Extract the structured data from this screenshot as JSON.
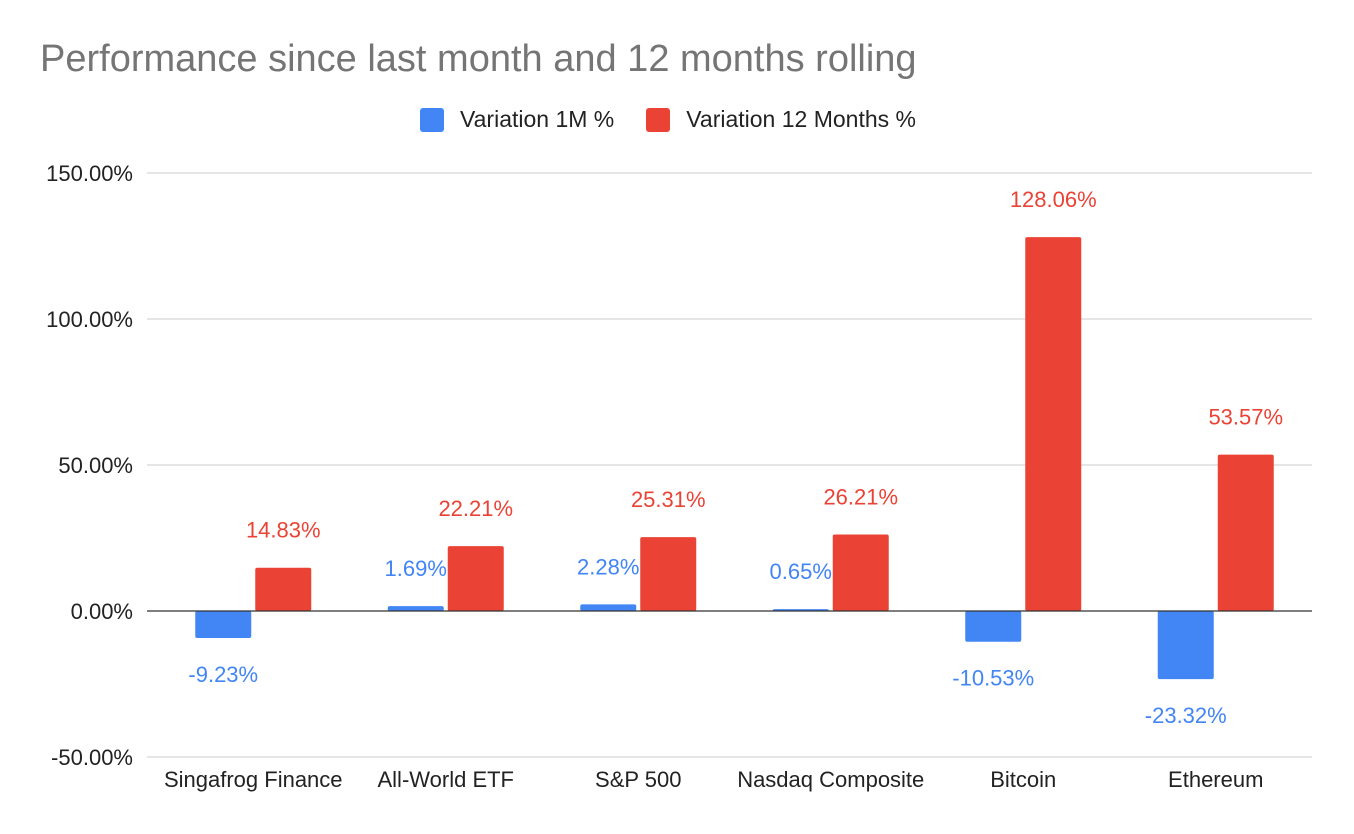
{
  "chart_data": {
    "type": "bar",
    "title": "Performance since last month and 12 months rolling",
    "categories": [
      "Singafrog Finance",
      "All-World ETF",
      "S&P 500",
      "Nasdaq Composite",
      "Bitcoin",
      "Ethereum"
    ],
    "series": [
      {
        "name": "Variation 1M %",
        "color": "#4285F4",
        "values": [
          -9.23,
          1.69,
          2.28,
          0.65,
          -10.53,
          -23.32
        ],
        "labels": [
          "-9.23%",
          "1.69%",
          "2.28%",
          "0.65%",
          "-10.53%",
          "-23.32%"
        ]
      },
      {
        "name": "Variation 12 Months %",
        "color": "#EA4335",
        "values": [
          14.83,
          22.21,
          25.31,
          26.21,
          128.06,
          53.57
        ],
        "labels": [
          "14.83%",
          "22.21%",
          "25.31%",
          "26.21%",
          "128.06%",
          "53.57%"
        ]
      }
    ],
    "ylim": [
      -50,
      150
    ],
    "yticks": [
      150,
      100,
      50,
      0,
      -50
    ],
    "ytick_labels": [
      "150.00%",
      "100.00%",
      "50.00%",
      "0.00%",
      "-50.00%"
    ],
    "xlabel": "",
    "ylabel": "",
    "grid": true,
    "legend_position": "top"
  }
}
